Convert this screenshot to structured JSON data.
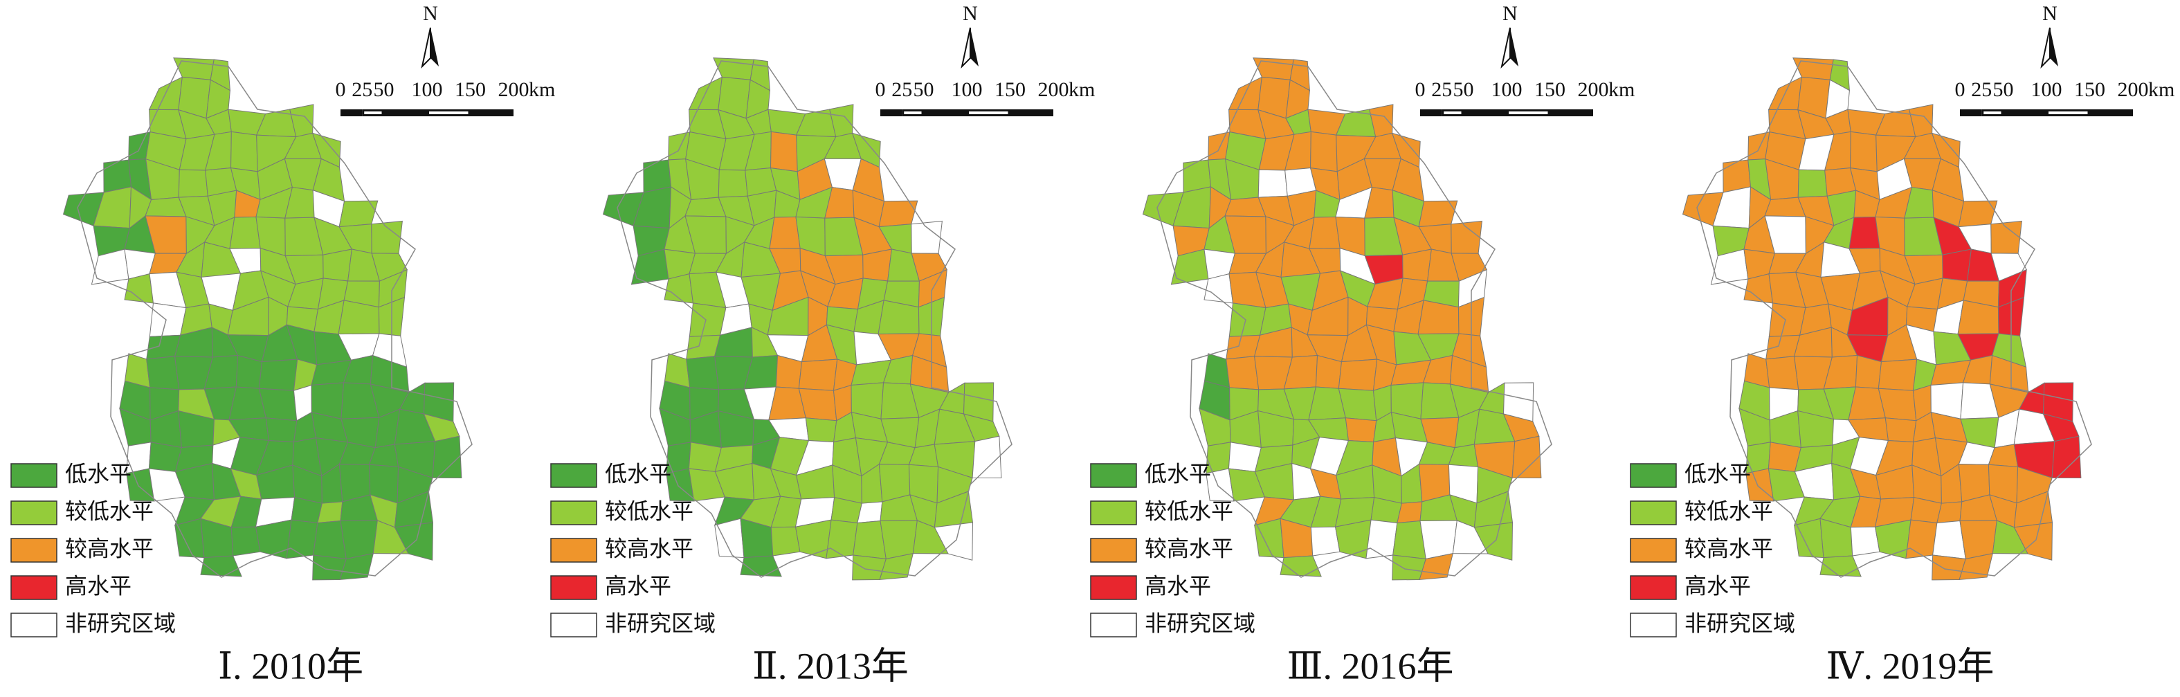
{
  "panels": [
    {
      "title": "Ⅰ. 2010年"
    },
    {
      "title": "Ⅱ. 2013年"
    },
    {
      "title": "Ⅲ. 2016年"
    },
    {
      "title": "Ⅳ. 2019年"
    }
  ],
  "legend": {
    "items": [
      {
        "label": "低水平",
        "color": "#4ca83e"
      },
      {
        "label": "较低水平",
        "color": "#94cc3a"
      },
      {
        "label": "较高水平",
        "color": "#ef952b"
      },
      {
        "label": "高水平",
        "color": "#e8262e"
      },
      {
        "label": "非研究区域",
        "color": "#ffffff"
      }
    ]
  },
  "north": "N",
  "scale_bar": {
    "ticks": [
      0,
      25,
      50,
      100,
      150,
      200
    ],
    "unit": "km"
  }
}
